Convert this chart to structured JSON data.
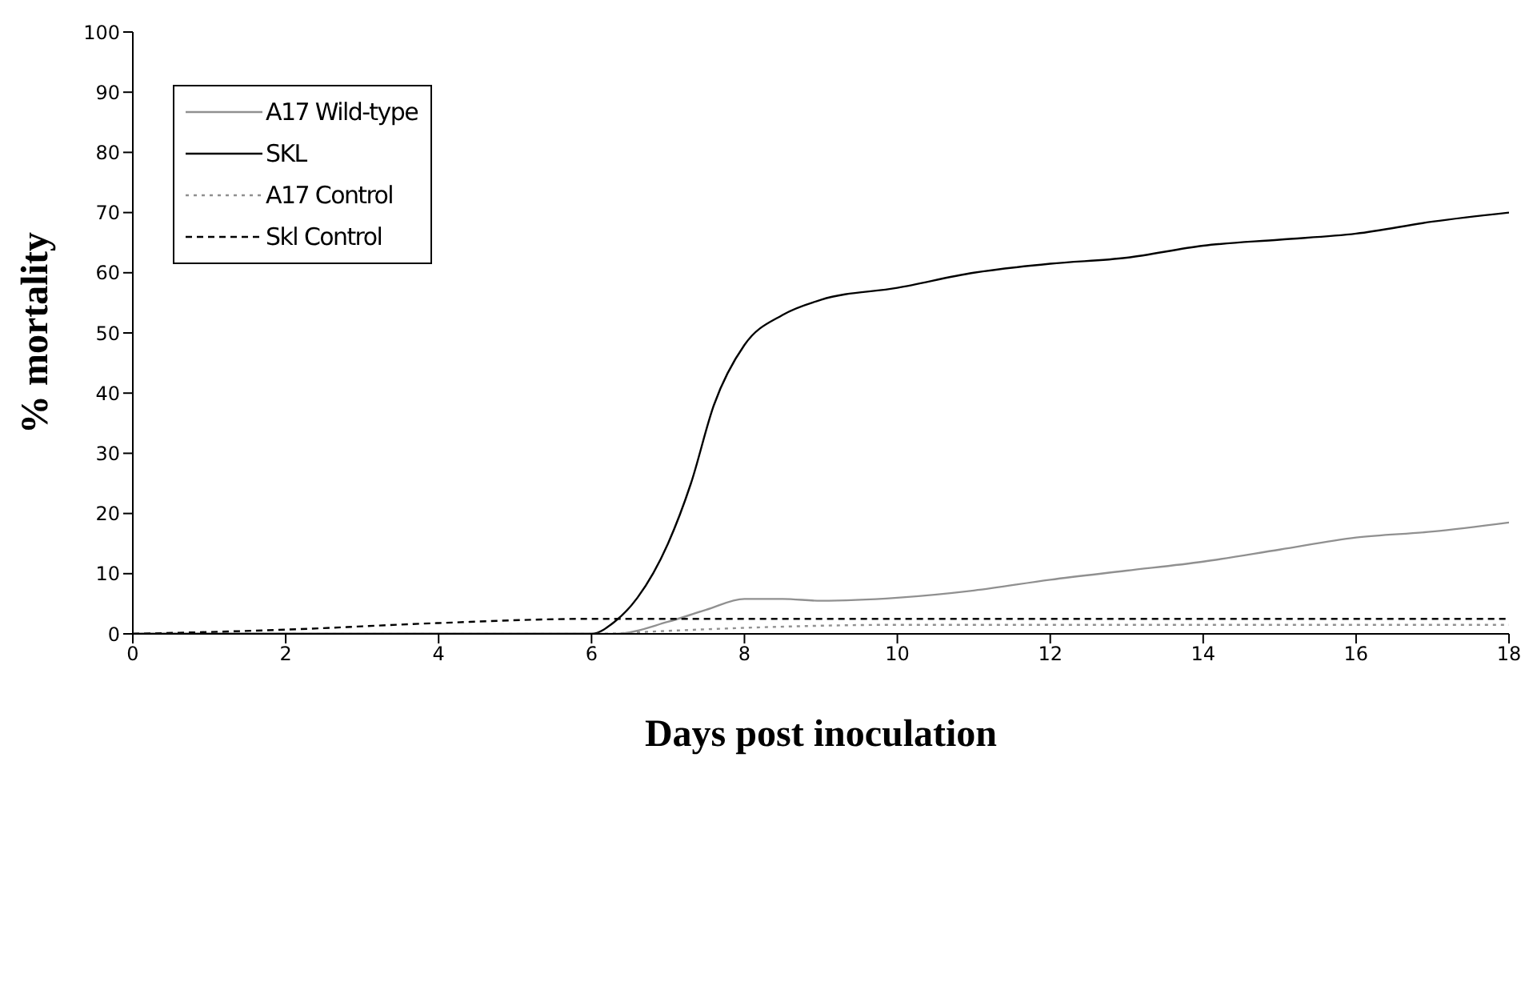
{
  "chart_data": {
    "type": "line",
    "xlabel": "Days post inoculation",
    "ylabel": "% mortality",
    "xlim": [
      0,
      18
    ],
    "xticks": [
      0,
      2,
      4,
      6,
      8,
      10,
      12,
      14,
      16,
      18
    ],
    "ylim": [
      0,
      100
    ],
    "yticks": [
      0,
      10,
      20,
      30,
      40,
      50,
      60,
      70,
      80,
      90,
      100
    ],
    "grid": false,
    "legend": "top left",
    "marker": "none",
    "series": [
      {
        "name": "A17 Wild-type",
        "color": "#909090",
        "line_style": "solid",
        "x": [
          0,
          6,
          6.3,
          7,
          7.5,
          8,
          8.5,
          9,
          10,
          11,
          12,
          13,
          14,
          15,
          16,
          17,
          18
        ],
        "values": [
          0,
          0,
          0,
          2,
          4,
          5.8,
          5.8,
          5.5,
          6,
          7.2,
          9,
          10.5,
          12,
          14,
          16,
          17,
          18.5
        ]
      },
      {
        "name": "SKL",
        "color": "#000000",
        "line_style": "solid",
        "x": [
          0,
          6,
          6.3,
          6.6,
          7,
          7.3,
          7.6,
          8,
          8.5,
          9,
          10,
          11,
          12,
          13,
          14,
          15,
          16,
          17,
          18
        ],
        "values": [
          0,
          0,
          2,
          6,
          15,
          25,
          38,
          48,
          53,
          55.5,
          57.5,
          60,
          61.5,
          62.5,
          64.5,
          65.5,
          66.5,
          68.5,
          70
        ]
      },
      {
        "name": "A17 Control",
        "color": "#909090",
        "line_style": "dotted",
        "x": [
          0,
          6,
          7,
          8,
          10,
          18
        ],
        "values": [
          0,
          0,
          0.5,
          1,
          1.5,
          1.5
        ]
      },
      {
        "name": "Skl Control",
        "color": "#000000",
        "line_style": "dashed",
        "x": [
          0,
          2,
          4,
          6,
          18
        ],
        "values": [
          0,
          0.7,
          1.8,
          2.5,
          2.5
        ]
      }
    ]
  }
}
